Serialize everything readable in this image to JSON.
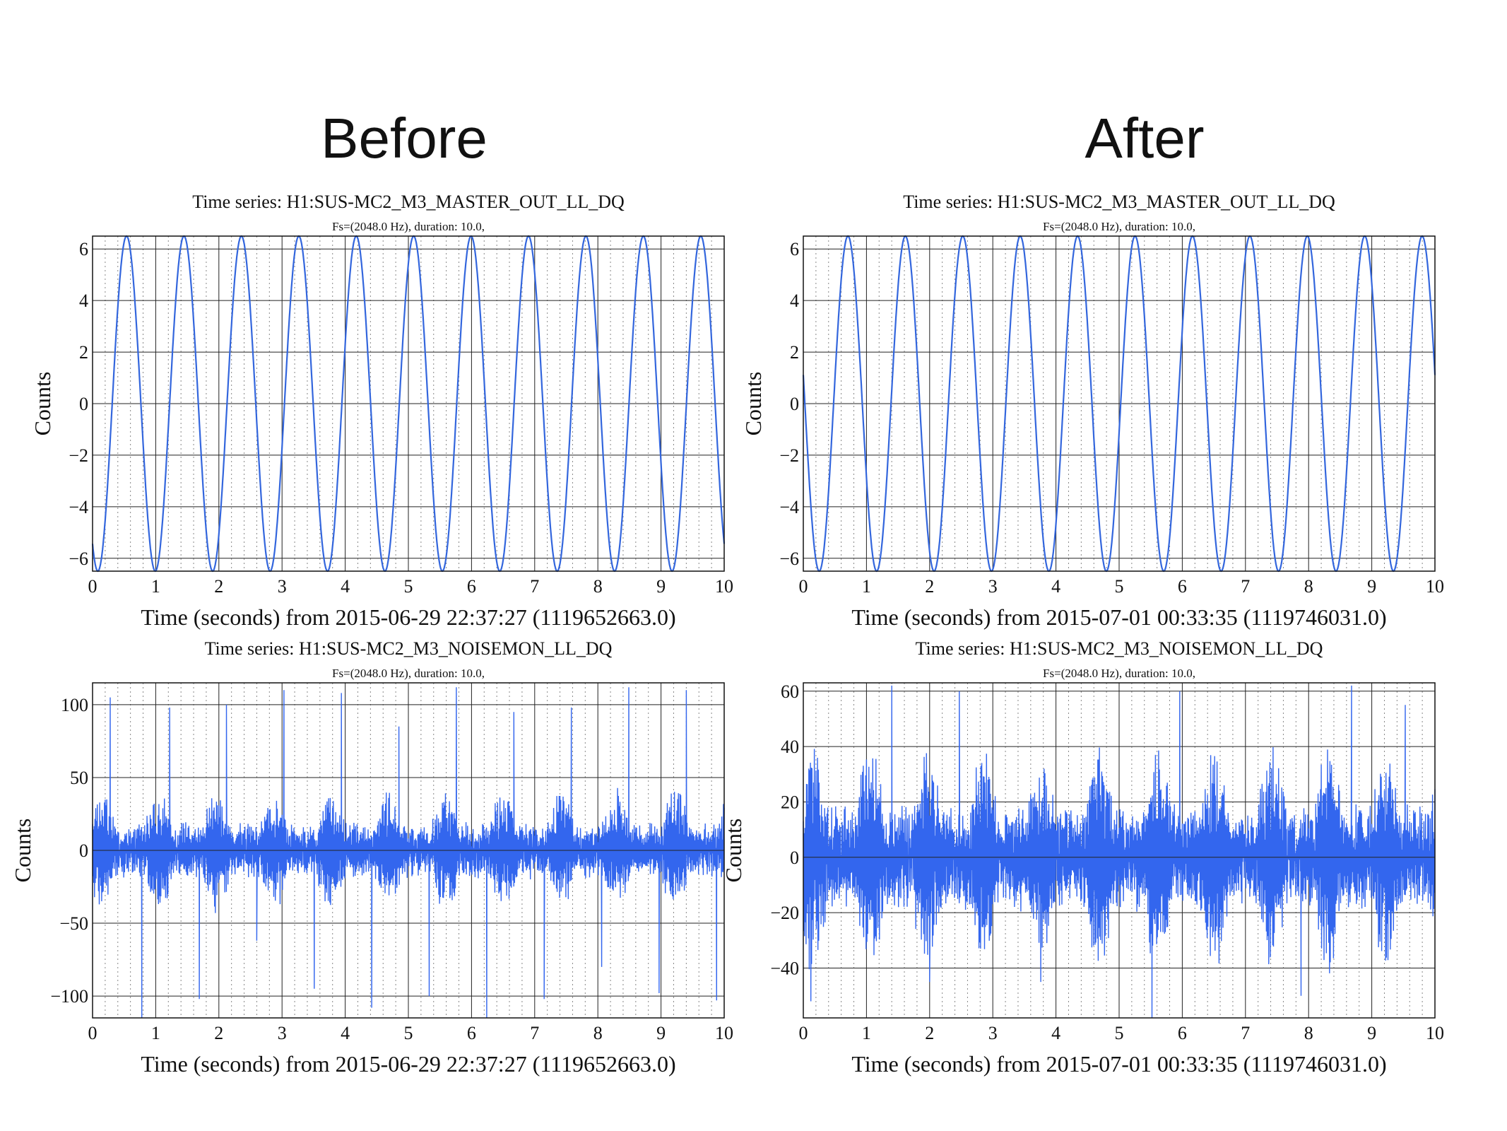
{
  "headings": {
    "left": "Before",
    "right": "After"
  },
  "chart_data": [
    {
      "type": "line",
      "panel": "before-top",
      "title": "Time series:  H1:SUS-MC2_M3_MASTER_OUT_LL_DQ",
      "subtitle": "Fs=(2048.0 Hz), duration: 10.0,",
      "xlabel": "Time (seconds) from 2015-06-29 22:37:27 (1119652663.0)",
      "ylabel": "Counts",
      "xlim": [
        0,
        10
      ],
      "ylim": [
        -6.5,
        6.5
      ],
      "xticks": [
        "0",
        "1",
        "2",
        "3",
        "4",
        "5",
        "6",
        "7",
        "8",
        "9",
        "10"
      ],
      "yticks": [
        {
          "v": 6,
          "label": "6"
        },
        {
          "v": 4,
          "label": "4"
        },
        {
          "v": 2,
          "label": "2"
        },
        {
          "v": 0,
          "label": "0"
        },
        {
          "v": -2,
          "label": "−2"
        },
        {
          "v": -4,
          "label": "−4"
        },
        {
          "v": -6,
          "label": "−6"
        }
      ],
      "grid": true,
      "color": "#3366dd",
      "series": [
        {
          "kind": "sine",
          "amplitude": 6.5,
          "frequency_hz": 1.1,
          "phase_rad": -2.15,
          "samples": 1200
        }
      ]
    },
    {
      "type": "line",
      "panel": "after-top",
      "title": "Time series:  H1:SUS-MC2_M3_MASTER_OUT_LL_DQ",
      "subtitle": "Fs=(2048.0 Hz), duration: 10.0,",
      "xlabel": "Time (seconds) from 2015-07-01 00:33:35 (1119746031.0)",
      "ylabel": "Counts",
      "xlim": [
        0,
        10
      ],
      "ylim": [
        -6.5,
        6.5
      ],
      "xticks": [
        "0",
        "1",
        "2",
        "3",
        "4",
        "5",
        "6",
        "7",
        "8",
        "9",
        "10"
      ],
      "yticks": [
        {
          "v": 6,
          "label": "6"
        },
        {
          "v": 4,
          "label": "4"
        },
        {
          "v": 2,
          "label": "2"
        },
        {
          "v": 0,
          "label": "0"
        },
        {
          "v": -2,
          "label": "−2"
        },
        {
          "v": -4,
          "label": "−4"
        },
        {
          "v": -6,
          "label": "−6"
        }
      ],
      "grid": true,
      "color": "#3366dd",
      "series": [
        {
          "kind": "sine",
          "amplitude": 6.5,
          "frequency_hz": 1.1,
          "phase_rad": 2.97,
          "samples": 1200
        }
      ]
    },
    {
      "type": "line",
      "panel": "before-bottom",
      "title": "Time series:  H1:SUS-MC2_M3_NOISEMON_LL_DQ",
      "subtitle": "Fs=(2048.0 Hz), duration: 10.0,",
      "xlabel": "Time (seconds) from 2015-06-29 22:37:27 (1119652663.0)",
      "ylabel": "Counts",
      "xlim": [
        0,
        10
      ],
      "ylim": [
        -115,
        115
      ],
      "xticks": [
        "0",
        "1",
        "2",
        "3",
        "4",
        "5",
        "6",
        "7",
        "8",
        "9",
        "10"
      ],
      "yticks": [
        {
          "v": 100,
          "label": "100"
        },
        {
          "v": 50,
          "label": "50"
        },
        {
          "v": 0,
          "label": "0"
        },
        {
          "v": -50,
          "label": "−50"
        },
        {
          "v": -100,
          "label": "−100"
        }
      ],
      "grid": true,
      "color": "#3366ee",
      "series": [
        {
          "kind": "noise",
          "envelope_hz": 1.1,
          "base": 14,
          "mod": 22,
          "spikes_up": [
            0.28,
            1.22,
            2.12,
            3.03,
            3.94,
            4.85,
            5.76,
            6.67,
            7.58,
            8.49,
            9.4
          ],
          "spikes_up_val": [
            105,
            98,
            100,
            110,
            108,
            85,
            112,
            95,
            98,
            112,
            110
          ],
          "spikes_down": [
            0.78,
            1.69,
            2.6,
            3.51,
            4.42,
            5.33,
            6.24,
            7.15,
            8.06,
            8.97,
            9.88
          ],
          "spikes_down_val": [
            -115,
            -102,
            -62,
            -95,
            -108,
            -100,
            -115,
            -102,
            -80,
            -98,
            -103
          ],
          "samples": 1600,
          "seed": 7
        }
      ]
    },
    {
      "type": "line",
      "panel": "after-bottom",
      "title": "Time series:  H1:SUS-MC2_M3_NOISEMON_LL_DQ",
      "subtitle": "Fs=(2048.0 Hz), duration: 10.0,",
      "xlabel": "Time (seconds) from 2015-07-01 00:33:35 (1119746031.0)",
      "ylabel": "Counts",
      "xlim": [
        0,
        10
      ],
      "ylim": [
        -58,
        63
      ],
      "xticks": [
        "0",
        "1",
        "2",
        "3",
        "4",
        "5",
        "6",
        "7",
        "8",
        "9",
        "10"
      ],
      "yticks": [
        {
          "v": 60,
          "label": "60"
        },
        {
          "v": 40,
          "label": "40"
        },
        {
          "v": 20,
          "label": "20"
        },
        {
          "v": 0,
          "label": "0"
        },
        {
          "v": -20,
          "label": "−20"
        },
        {
          "v": -40,
          "label": "−40"
        }
      ],
      "grid": true,
      "color": "#3366ee",
      "series": [
        {
          "kind": "noise",
          "envelope_hz": 1.1,
          "base": 14,
          "mod": 20,
          "spikes_up": [
            1.4,
            2.47,
            5.96,
            8.68,
            9.53
          ],
          "spikes_up_val": [
            62,
            60,
            60,
            62,
            55
          ],
          "spikes_down": [
            0.12,
            2.0,
            3.76,
            5.52,
            7.88
          ],
          "spikes_down_val": [
            -52,
            -45,
            -45,
            -58,
            -50
          ],
          "samples": 1600,
          "seed": 13
        }
      ]
    }
  ]
}
